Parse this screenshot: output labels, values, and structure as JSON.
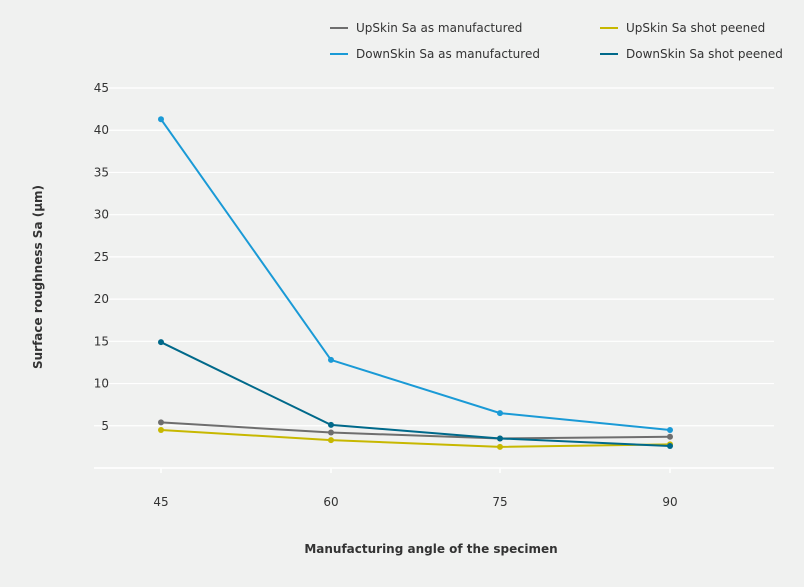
{
  "chart_data": {
    "type": "line",
    "title": "",
    "xlabel": "Manufacturing angle of the specimen",
    "ylabel": "Surface roughness Sa (µm)",
    "x": [
      45,
      60,
      75,
      90
    ],
    "x_tick_labels": [
      "45",
      "60",
      "75",
      "90"
    ],
    "y_tick_labels": [
      "5",
      "10",
      "15",
      "20",
      "25",
      "30",
      "35",
      "40",
      "45"
    ],
    "ylim": [
      0,
      45
    ],
    "grid": "horizontal",
    "legend_position": "top",
    "series": [
      {
        "name": "UpSkin Sa as manufactured",
        "color": "#6e6e6e",
        "values": [
          5.4,
          4.2,
          3.5,
          3.7
        ]
      },
      {
        "name": "UpSkin Sa shot peened",
        "color": "#c7b800",
        "values": [
          4.5,
          3.3,
          2.5,
          2.8
        ]
      },
      {
        "name": "DownSkin Sa as manufactured",
        "color": "#1a9ad6",
        "values": [
          41.3,
          12.8,
          6.5,
          4.5
        ]
      },
      {
        "name": "DownSkin Sa shot peened",
        "color": "#00698a",
        "values": [
          14.9,
          5.1,
          3.5,
          2.6
        ]
      }
    ]
  }
}
